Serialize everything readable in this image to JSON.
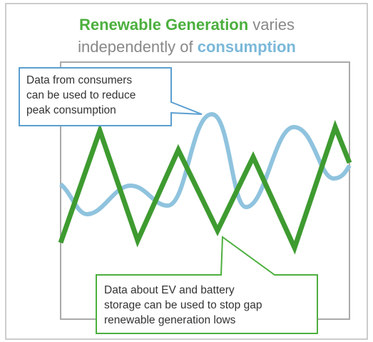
{
  "title": {
    "part1": "Renewable Generation",
    "part2": " varies",
    "part3": "independently of ",
    "part4": "consumption"
  },
  "callouts": [
    {
      "lines": [
        "Data from consumers",
        "can be used to reduce",
        "peak consumption"
      ]
    },
    {
      "lines": [
        "Data about EV and battery",
        "storage can be used to stop gap",
        "renewable generation lows"
      ]
    }
  ]
}
